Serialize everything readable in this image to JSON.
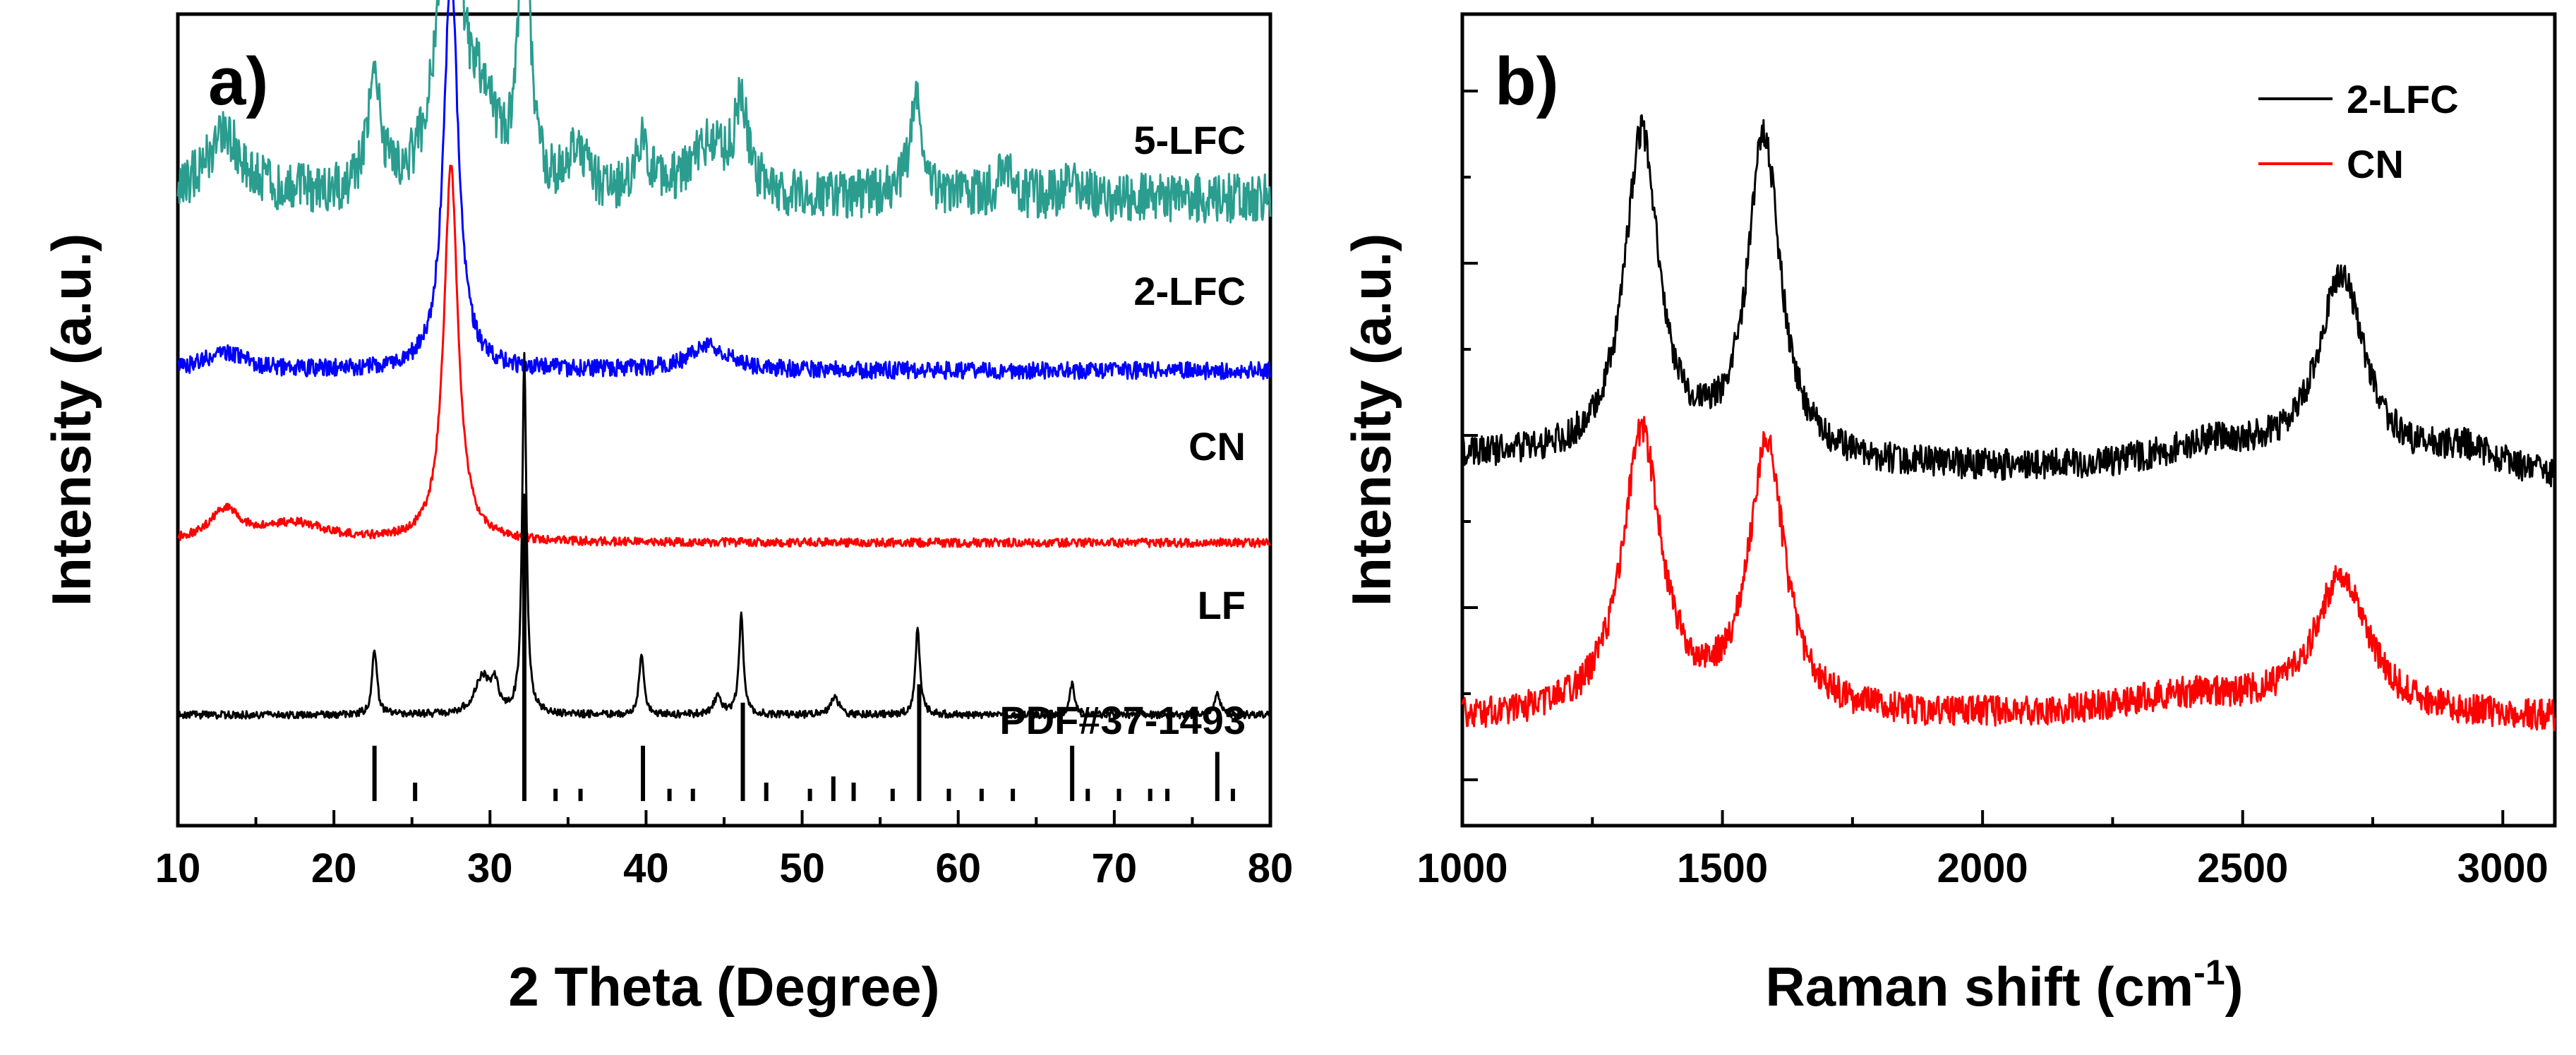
{
  "chart_data": [
    {
      "panel_label": "a)",
      "type": "line",
      "subtype": "XRD patterns (stacked, offset)",
      "xlabel": "2 Theta (Degree)",
      "ylabel": "Intensity (a.u.)",
      "xlim": [
        10,
        80
      ],
      "x_ticks": [
        "10",
        "20",
        "30",
        "40",
        "50",
        "60",
        "70",
        "80"
      ],
      "y_ticks_shown": false,
      "series": [
        {
          "name": "5-LFC",
          "color": "#2a9d8f",
          "baseline": 100,
          "noise": 4,
          "peaks": [
            {
              "x": 13.0,
              "h": 10,
              "w": 1.5
            },
            {
              "x": 22.6,
              "h": 18,
              "w": 0.5
            },
            {
              "x": 27.4,
              "h": 58,
              "w": 0.8
            },
            {
              "x": 29.5,
              "h": 12,
              "w": 1.2
            },
            {
              "x": 32.2,
              "h": 55,
              "w": 0.35
            },
            {
              "x": 35.6,
              "h": 8,
              "w": 0.6
            },
            {
              "x": 39.8,
              "h": 8,
              "w": 0.5
            },
            {
              "x": 44.0,
              "h": 8,
              "w": 1.5
            },
            {
              "x": 46.1,
              "h": 14,
              "w": 0.5
            },
            {
              "x": 57.3,
              "h": 18,
              "w": 0.45
            },
            {
              "x": 63.0,
              "h": 4,
              "w": 0.6
            },
            {
              "x": 67.3,
              "h": 4,
              "w": 0.5
            }
          ]
        },
        {
          "name": "2-LFC",
          "color": "#0000ff",
          "baseline": 72,
          "noise": 1.4,
          "peaks": [
            {
              "x": 13.0,
              "h": 3,
              "w": 1.5
            },
            {
              "x": 27.5,
              "h": 66,
              "w": 0.55
            },
            {
              "x": 44.0,
              "h": 4,
              "w": 1.5
            }
          ]
        },
        {
          "name": "CN",
          "color": "#ff0000",
          "baseline": 44,
          "noise": 0.7,
          "peaks": [
            {
              "x": 13.0,
              "h": 5,
              "w": 1.2
            },
            {
              "x": 17.5,
              "h": 3,
              "w": 2.5
            },
            {
              "x": 27.5,
              "h": 61,
              "w": 0.55
            }
          ]
        },
        {
          "name": "LF",
          "color": "#000000",
          "baseline": 16,
          "noise": 0.6,
          "peaks": [
            {
              "x": 22.6,
              "h": 11,
              "w": 0.18
            },
            {
              "x": 29.5,
              "h": 6,
              "w": 0.6
            },
            {
              "x": 30.3,
              "h": 4,
              "w": 0.3
            },
            {
              "x": 32.2,
              "h": 58,
              "w": 0.16
            },
            {
              "x": 39.7,
              "h": 10,
              "w": 0.18
            },
            {
              "x": 44.6,
              "h": 3,
              "w": 0.3
            },
            {
              "x": 46.1,
              "h": 16,
              "w": 0.18
            },
            {
              "x": 52.1,
              "h": 3,
              "w": 0.3
            },
            {
              "x": 57.4,
              "h": 14,
              "w": 0.18
            },
            {
              "x": 67.3,
              "h": 5,
              "w": 0.18
            },
            {
              "x": 76.6,
              "h": 4,
              "w": 0.18
            }
          ]
        }
      ],
      "reference": {
        "name": "PDF#37-1493",
        "color": "#000000",
        "sticks": [
          {
            "x": 22.6,
            "h": 9
          },
          {
            "x": 25.2,
            "h": 3
          },
          {
            "x": 32.2,
            "h": 50
          },
          {
            "x": 34.2,
            "h": 2
          },
          {
            "x": 35.8,
            "h": 2
          },
          {
            "x": 39.8,
            "h": 9
          },
          {
            "x": 41.5,
            "h": 2
          },
          {
            "x": 43.0,
            "h": 2
          },
          {
            "x": 46.2,
            "h": 16
          },
          {
            "x": 47.7,
            "h": 3
          },
          {
            "x": 50.5,
            "h": 2
          },
          {
            "x": 52.0,
            "h": 4
          },
          {
            "x": 53.3,
            "h": 3
          },
          {
            "x": 55.8,
            "h": 2
          },
          {
            "x": 57.5,
            "h": 19
          },
          {
            "x": 59.4,
            "h": 2
          },
          {
            "x": 61.5,
            "h": 2
          },
          {
            "x": 63.5,
            "h": 2
          },
          {
            "x": 67.3,
            "h": 9
          },
          {
            "x": 68.3,
            "h": 2
          },
          {
            "x": 70.3,
            "h": 2
          },
          {
            "x": 72.3,
            "h": 2
          },
          {
            "x": 73.4,
            "h": 2
          },
          {
            "x": 76.6,
            "h": 8
          },
          {
            "x": 77.6,
            "h": 2
          }
        ]
      },
      "ylim": [
        -2,
        130
      ]
    },
    {
      "panel_label": "b)",
      "type": "line",
      "subtype": "Raman spectra (offset)",
      "xlabel_main": "Raman shift (cm",
      "xlabel_sup": "-1",
      "xlabel_end": ")",
      "ylabel": "Intensity (a.u.)",
      "xlim": [
        1000,
        3100
      ],
      "x_ticks": [
        "1000",
        "1500",
        "2000",
        "2500",
        "3000"
      ],
      "y_ticks_shown": true,
      "legend": {
        "placement": "top-right",
        "entries": [
          {
            "label": "2-LFC",
            "color": "#000000"
          },
          {
            "label": "CN",
            "color": "#ff0000"
          }
        ]
      },
      "series": [
        {
          "name": "2-LFC",
          "color": "#000000",
          "baseline": 52,
          "slope": -4,
          "noise": 2.2,
          "peaks": [
            {
              "x": 1345,
              "h": 46,
              "w": 40
            },
            {
              "x": 1580,
              "h": 46,
              "w": 38
            },
            {
              "x": 2690,
              "h": 28,
              "w": 55
            },
            {
              "x": 2450,
              "h": 4,
              "w": 150
            },
            {
              "x": 2930,
              "h": 4,
              "w": 100
            }
          ]
        },
        {
          "name": "CN",
          "color": "#ff0000",
          "baseline": 15,
          "slope": 0,
          "noise": 2.2,
          "peaks": [
            {
              "x": 1345,
              "h": 40,
              "w": 45
            },
            {
              "x": 1585,
              "h": 38,
              "w": 42
            },
            {
              "x": 2690,
              "h": 20,
              "w": 60
            },
            {
              "x": 2400,
              "h": 3,
              "w": 180
            }
          ]
        }
      ],
      "ylim": [
        0,
        115
      ]
    }
  ]
}
